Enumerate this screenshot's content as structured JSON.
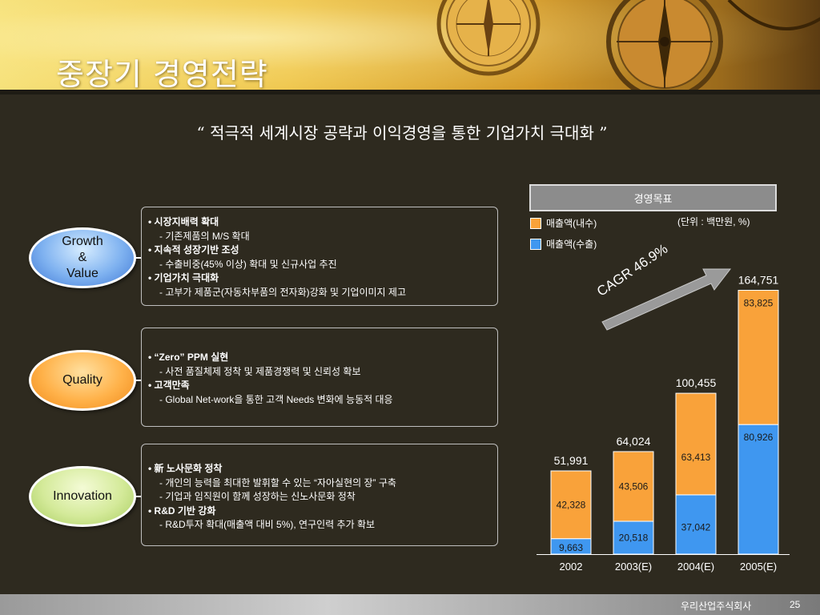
{
  "slide": {
    "title": "중장기 경영전략",
    "slogan": "“ 적극적 세계시장 공략과 이익경영을 통한 기업가치 극대화 ”"
  },
  "pillars": [
    {
      "label_lines": [
        "Growth",
        "&",
        "Value"
      ],
      "color": "#4f86dc",
      "items": [
        {
          "head": "시장지배력 확대",
          "subs": [
            "기존제품의 M/S 확대"
          ]
        },
        {
          "head": "지속적 성장기반 조성",
          "subs": [
            "수출비중(45% 이상) 확대 및 신규사업 추진"
          ]
        },
        {
          "head": "기업가치 극대화",
          "subs": [
            "고부가 제품군(자동차부품의 전자화)강화 및 기업이미지 제고"
          ]
        }
      ]
    },
    {
      "label_lines": [
        "Quality"
      ],
      "color": "#f79a2a",
      "items": [
        {
          "head": "“Zero” PPM 실현",
          "subs": [
            "사전 품질체제 정착 및 제품경쟁력 및 신뢰성 확보"
          ]
        },
        {
          "head": "고객만족",
          "subs": [
            "Global Net-work을 통한 고객 Needs 변화에 능동적 대응"
          ]
        }
      ]
    },
    {
      "label_lines": [
        "Innovation"
      ],
      "color": "#bcdc7c",
      "items": [
        {
          "head": "新 노사문화 정착",
          "subs": [
            "개인의 능력을 최대한 발휘할 수 있는 “자아실현의 장” 구축",
            "기업과 임직원이 함께 성장하는 신노사문화 정착"
          ]
        },
        {
          "head": "R&D 기반 강화",
          "subs": [
            "R&D투자 확대(매출액 대비 5%), 연구인력 추가 확보"
          ]
        }
      ]
    }
  ],
  "target_panel": {
    "header": "경영목표",
    "unit": "(단위 : 백만원, %)",
    "cagr": "CAGR 46.9%"
  },
  "chart_data": {
    "type": "bar",
    "stacked": true,
    "categories": [
      "2002",
      "2003(E)",
      "2004(E)",
      "2005(E)"
    ],
    "series": [
      {
        "name": "매출액(수출)",
        "values": [
          9663,
          20518,
          37042,
          80926
        ],
        "labels": [
          "9,663",
          "20,518",
          "37,042",
          "80,926"
        ],
        "color": "#3f97f0"
      },
      {
        "name": "매출액(내수)",
        "values": [
          42328,
          43506,
          63413,
          83825
        ],
        "labels": [
          "42,328",
          "43,506",
          "63,413",
          "83,825"
        ],
        "color": "#f9a23a"
      }
    ],
    "totals": [
      51991,
      64024,
      100455,
      164751
    ],
    "total_labels": [
      "51,991",
      "64,024",
      "100,455",
      "164,751"
    ],
    "ylim": [
      0,
      175000
    ],
    "grid": false,
    "legend": "top-left"
  },
  "footer": {
    "company": "우리산업주식회사",
    "page": "25"
  }
}
